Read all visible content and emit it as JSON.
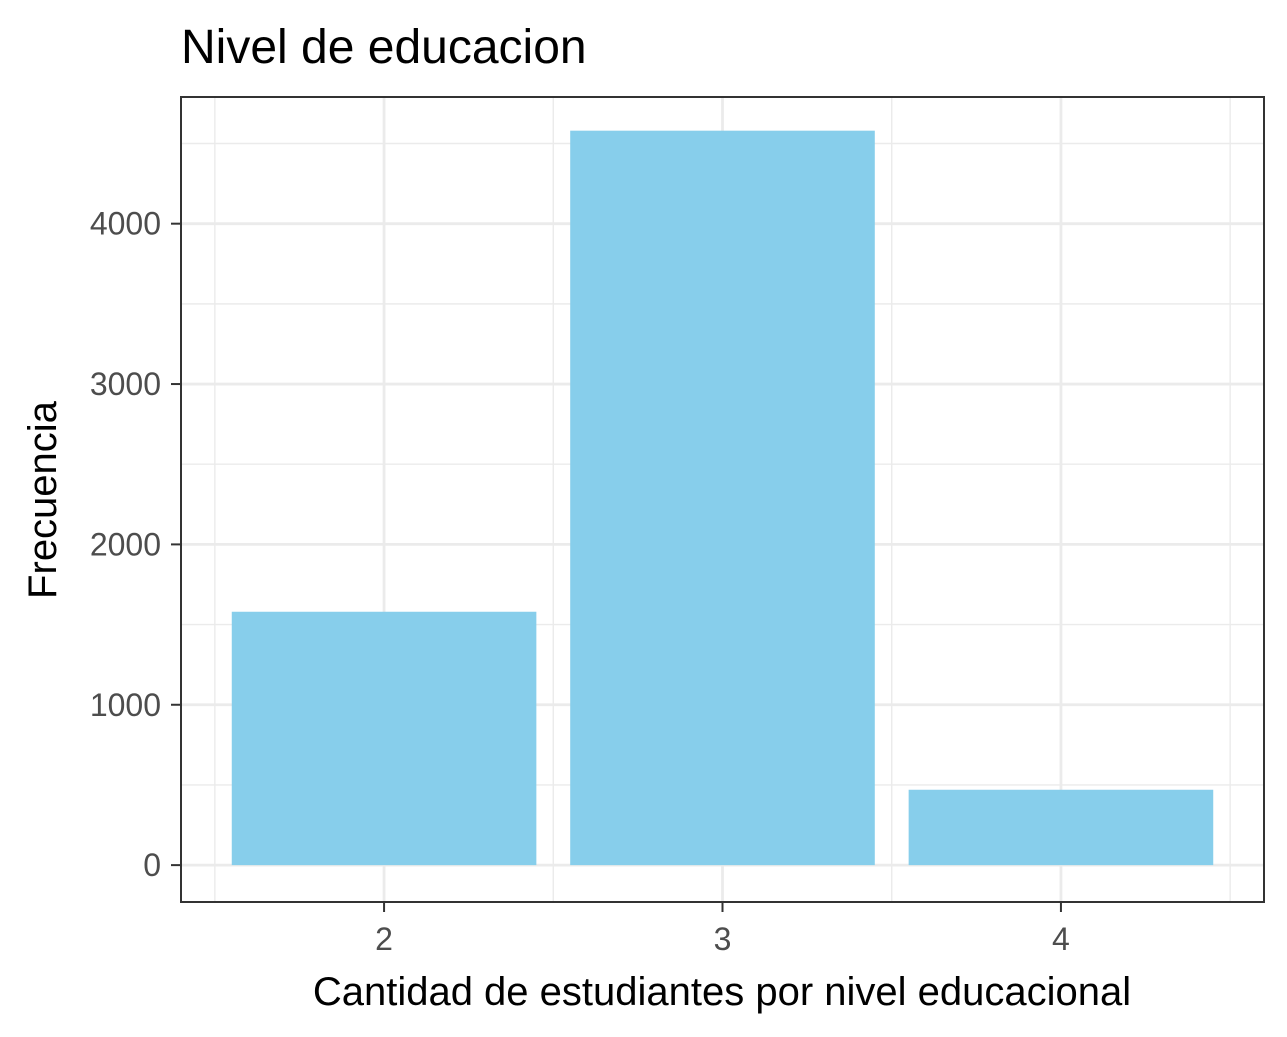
{
  "chart_data": {
    "type": "bar",
    "title": "Nivel de educacion",
    "xlabel": "Cantidad de estudiantes por nivel educacional",
    "ylabel": "Frecuencia",
    "categories": [
      "2",
      "3",
      "4"
    ],
    "values": [
      1580,
      4580,
      470
    ],
    "yticks": [
      0,
      1000,
      2000,
      3000,
      4000
    ],
    "ylim": [
      -230,
      4790
    ],
    "bar_color": "#87CEEB",
    "grid": true,
    "legend": "none"
  }
}
